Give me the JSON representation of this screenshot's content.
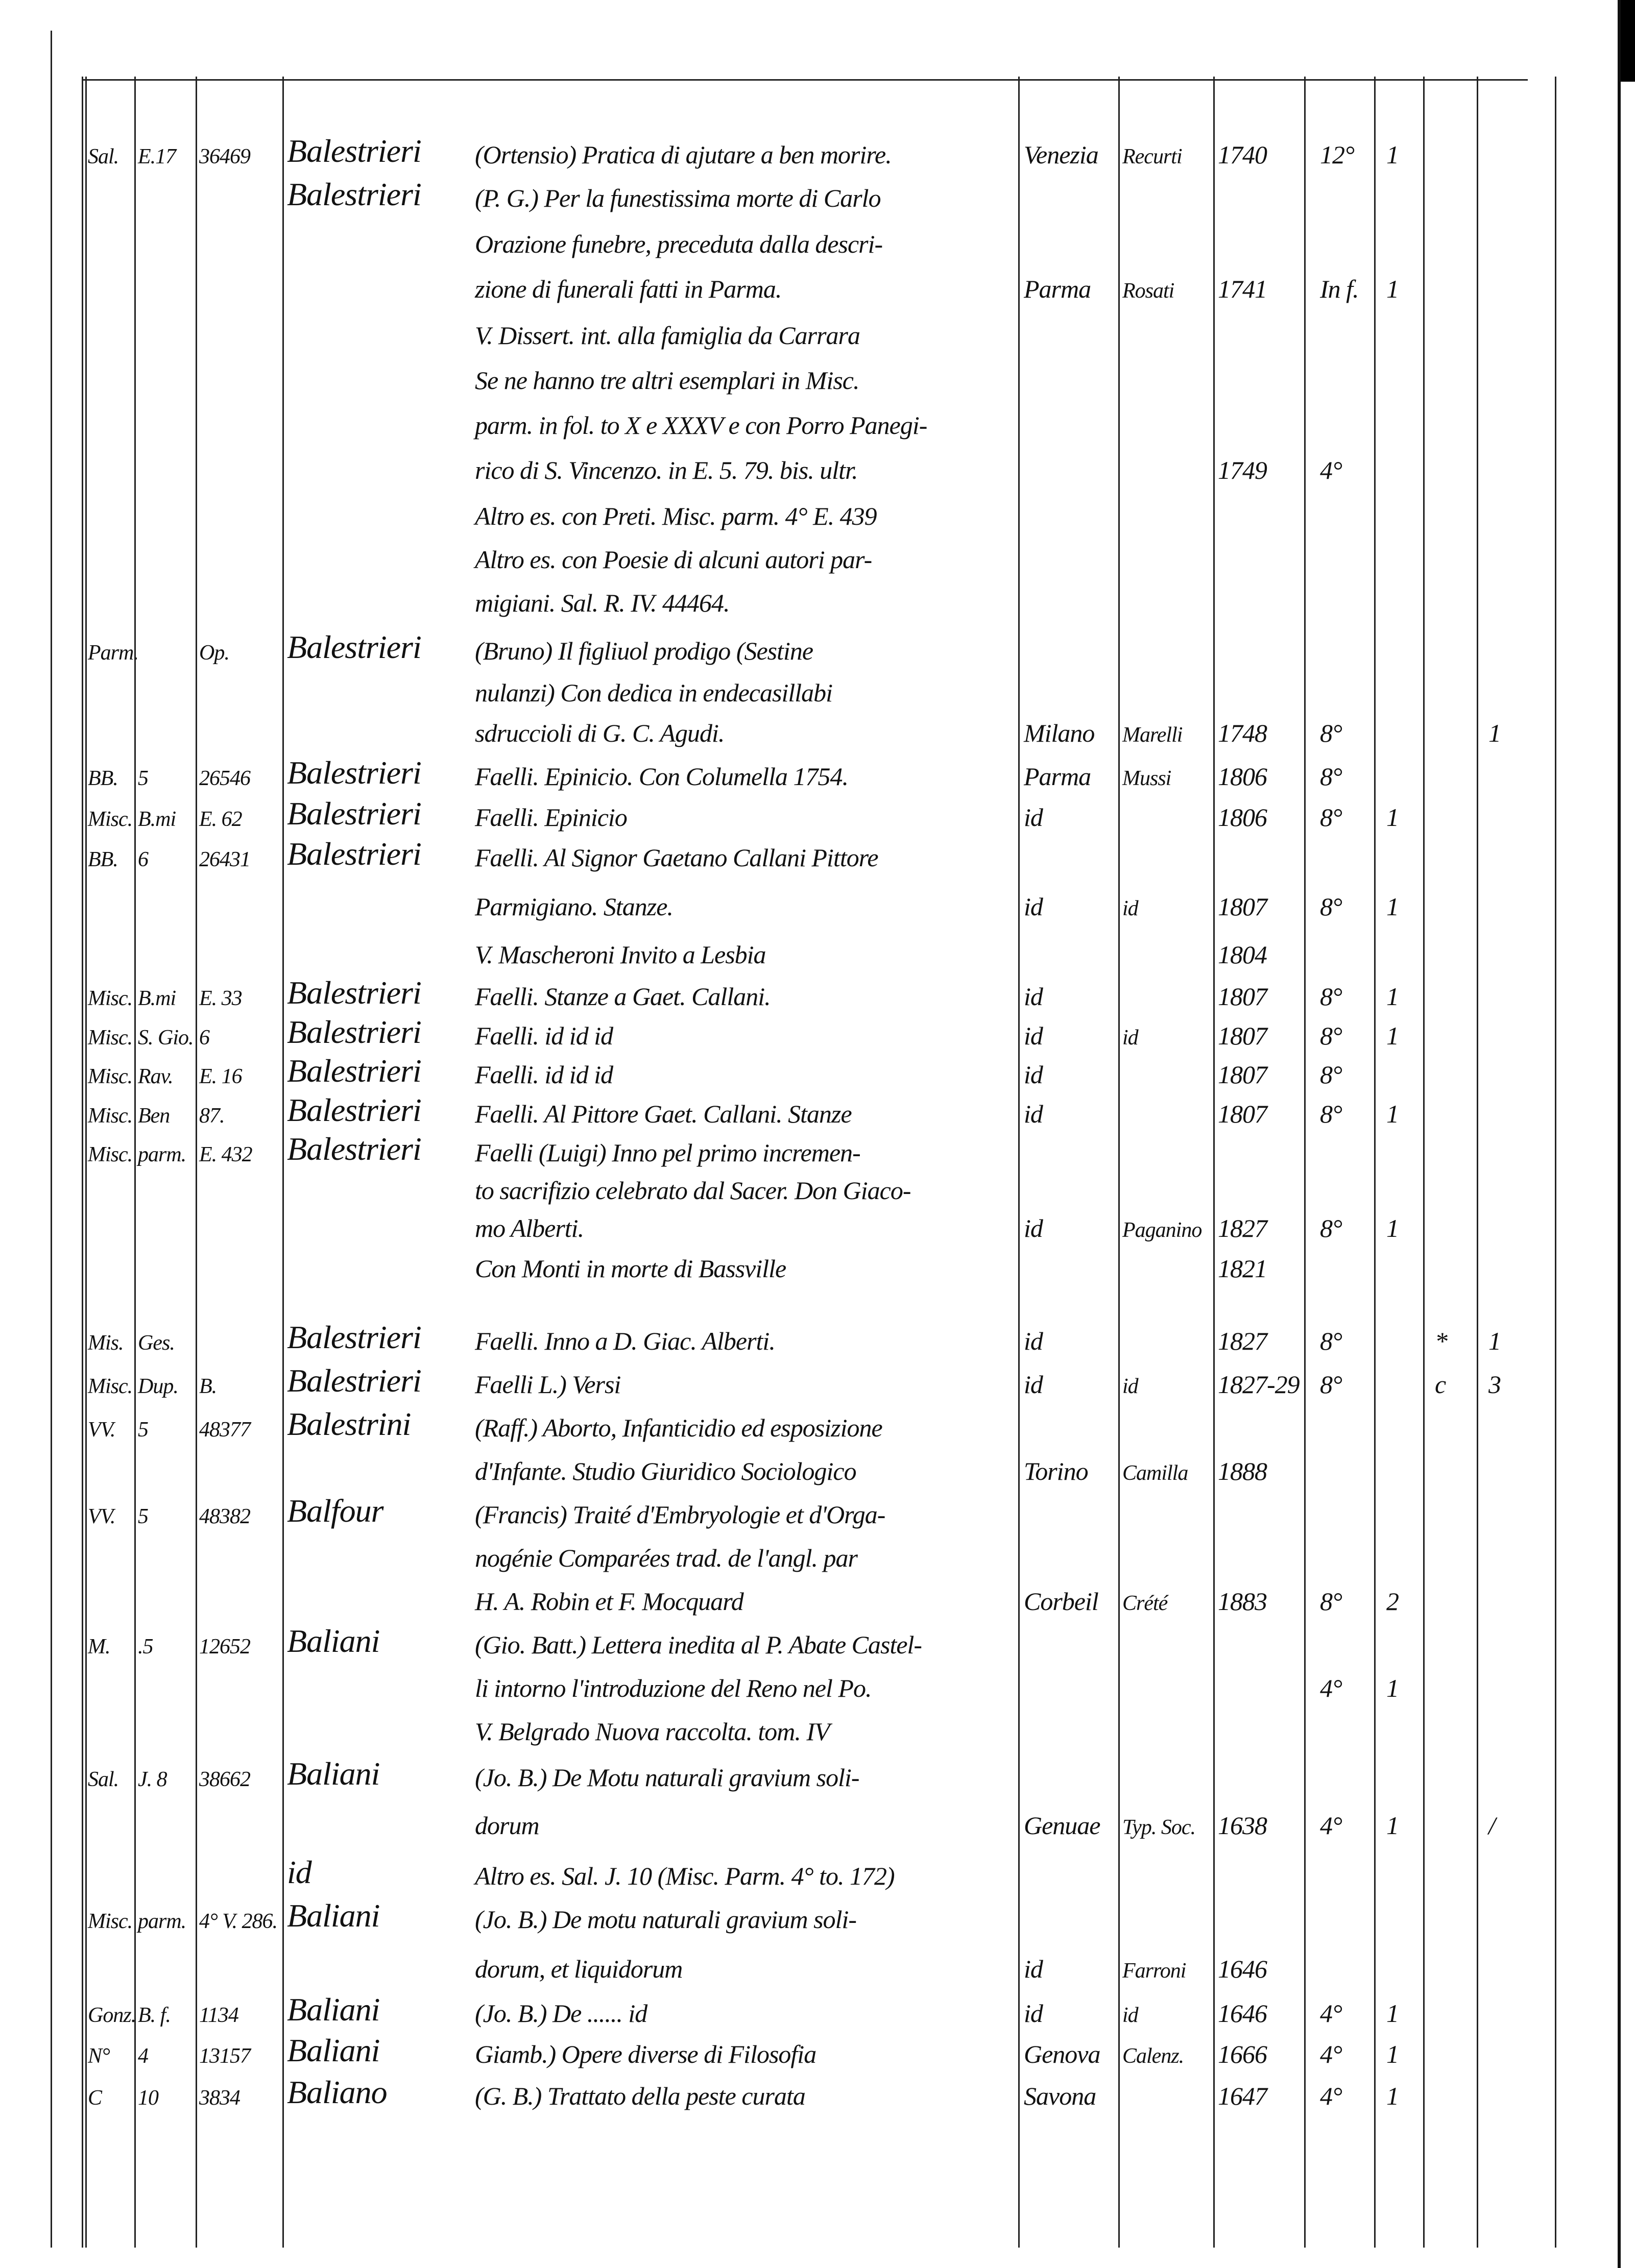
{
  "entries": [
    {
      "shelf": "Sal.",
      "section": "E.17",
      "number": "36469",
      "author": "Balestrieri",
      "title": "(Ortensio) Pratica di ajutare a ben morire.",
      "place": "Venezia",
      "printer": "Recurti",
      "year": "1740",
      "format": "12°",
      "copies": "1"
    },
    {
      "author": "Balestrieri",
      "title": "(P. G.) Per la funestissima morte di Carlo"
    },
    {
      "title": "Orazione funebre, preceduta dalla descri-"
    },
    {
      "title": "zione di funerali fatti in Parma.",
      "place": "Parma",
      "printer": "Rosati",
      "year": "1741",
      "format": "In f.",
      "copies": "1"
    },
    {
      "title": "V. Dissert. int. alla famiglia da Carrara"
    },
    {
      "title": "Se ne hanno tre altri esemplari in Misc."
    },
    {
      "title": "parm. in fol. to X e XXXV e con Porro Panegi-"
    },
    {
      "title": "rico di S. Vincenzo. in E. 5. 79. bis. ultr.",
      "year": "1749",
      "format": "4°"
    },
    {
      "title": "Altro es. con Preti. Misc. parm. 4° E. 439"
    },
    {
      "title": "Altro es. con Poesie di alcuni autori par-"
    },
    {
      "title": "migiani. Sal. R. IV. 44464."
    },
    {
      "shelf": "Parm.",
      "number": "Op.",
      "author": "Balestrieri",
      "title": "(Bruno) Il figliuol prodigo (Sestine"
    },
    {
      "title": "nulanzi) Con dedica in endecasillabi"
    },
    {
      "title": "sdruccioli di G. C. Agudi.",
      "place": "Milano",
      "printer": "Marelli",
      "year": "1748",
      "format": "8°",
      "extra": "1"
    },
    {
      "shelf": "BB.",
      "section": "5",
      "number": "26546",
      "author": "Balestrieri",
      "title": "Faelli. Epinicio. Con Columella 1754.",
      "place": "Parma",
      "printer": "Mussi",
      "year": "1806",
      "format": "8°"
    },
    {
      "shelf": "Misc.",
      "section": "B.mi",
      "number": "E. 62",
      "author": "Balestrieri",
      "title": "Faelli. Epinicio",
      "place": "id",
      "year": "1806",
      "format": "8°",
      "copies": "1"
    },
    {
      "shelf": "BB.",
      "section": "6",
      "number": "26431",
      "author": "Balestrieri",
      "title": "Faelli. Al Signor Gaetano Callani Pittore"
    },
    {
      "title": "Parmigiano. Stanze.",
      "place": "id",
      "printer": "id",
      "year": "1807",
      "format": "8°",
      "copies": "1"
    },
    {
      "title": "V. Mascheroni Invito a Lesbia",
      "year": "1804"
    },
    {
      "shelf": "Misc.",
      "section": "B.mi",
      "number": "E. 33",
      "author": "Balestrieri",
      "title": "Faelli. Stanze a Gaet. Callani.",
      "place": "id",
      "year": "1807",
      "format": "8°",
      "copies": "1"
    },
    {
      "shelf": "Misc.",
      "section": "S. Gio.",
      "number": "6",
      "author": "Balestrieri",
      "title": "Faelli.   id   id   id",
      "place": "id",
      "printer": "id",
      "year": "1807",
      "format": "8°",
      "copies": "1"
    },
    {
      "shelf": "Misc.",
      "section": "Rav.",
      "number": "E. 16",
      "author": "Balestrieri",
      "title": "Faelli.   id   id   id",
      "place": "id",
      "year": "1807",
      "format": "8°"
    },
    {
      "shelf": "Misc.",
      "section": "Ben",
      "number": "87.",
      "author": "Balestrieri",
      "title": "Faelli. Al Pittore Gaet. Callani. Stanze",
      "place": "id",
      "year": "1807",
      "format": "8°",
      "copies": "1"
    },
    {
      "shelf": "Misc.",
      "section": "parm.",
      "number": "E. 432",
      "author": "Balestrieri",
      "title": "Faelli (Luigi) Inno pel primo incremen-"
    },
    {
      "title": "to sacrifizio celebrato dal Sacer. Don Giaco-"
    },
    {
      "title": "mo Alberti.",
      "place": "id",
      "printer": "Paganino",
      "year": "1827",
      "format": "8°",
      "copies": "1"
    },
    {
      "title": "Con Monti in morte di Bassville",
      "year": "1821"
    },
    {
      "shelf": "Mis.",
      "section": "Ges.",
      "author": "Balestrieri",
      "title": "Faelli. Inno a D. Giac. Alberti.",
      "place": "id",
      "year": "1827",
      "format": "8°",
      "mark": "*",
      "extra": "1"
    },
    {
      "shelf": "Misc.",
      "section": "Dup.",
      "number": "B.",
      "author": "Balestrieri",
      "title": "Faelli L.) Versi",
      "place": "id",
      "printer": "id",
      "year": "1827-29",
      "format": "8°",
      "mark": "c",
      "extra": "3"
    },
    {
      "shelf": "VV.",
      "section": "5",
      "number": "48377",
      "author": "Balestrini",
      "title": "(Raff.) Aborto, Infanticidio ed esposizione"
    },
    {
      "title": "d'Infante. Studio Giuridico Sociologico",
      "place": "Torino",
      "printer": "Camilla",
      "year": "1888"
    },
    {
      "shelf": "VV.",
      "section": "5",
      "number": "48382",
      "author": "Balfour",
      "title": "(Francis) Traité d'Embryologie et d'Orga-"
    },
    {
      "title": "nogénie Comparées trad. de l'angl. par"
    },
    {
      "title": "H. A. Robin et F. Mocquard",
      "place": "Corbeil",
      "printer": "Crété",
      "year": "1883",
      "format": "8°",
      "copies": "2"
    },
    {
      "shelf": "M.",
      "section": ".5",
      "number": "12652",
      "author": "Baliani",
      "title": "(Gio. Batt.) Lettera inedita al P. Abate Castel-"
    },
    {
      "title": "li intorno l'introduzione del Reno nel Po.",
      "format": "4°",
      "copies": "1"
    },
    {
      "title": "V. Belgrado Nuova raccolta. tom. IV"
    },
    {
      "shelf": "Sal.",
      "section": "J. 8",
      "number": "38662",
      "author": "Baliani",
      "title": "(Jo. B.) De Motu naturali gravium soli-"
    },
    {
      "title": "dorum",
      "place": "Genuae",
      "printer": "Typ. Soc.",
      "year": "1638",
      "format": "4°",
      "copies": "1",
      "extra": "/"
    },
    {
      "author": "id",
      "title": "Altro es. Sal. J. 10 (Misc. Parm. 4° to. 172)"
    },
    {
      "shelf": "Misc.",
      "section": "parm.",
      "number": "4° V. 286.",
      "author": "Baliani",
      "title": "(Jo. B.) De motu naturali gravium soli-"
    },
    {
      "title": "dorum, et liquidorum",
      "place": "id",
      "printer": "Farroni",
      "year": "1646"
    },
    {
      "shelf": "Gonz.",
      "section": "B. f.",
      "number": "1134",
      "author": "Baliani",
      "title": "(Jo. B.) De ...... id",
      "place": "id",
      "printer": "id",
      "year": "1646",
      "format": "4°",
      "copies": "1"
    },
    {
      "shelf": "N°",
      "section": "4",
      "number": "13157",
      "author": "Baliani",
      "title": "Giamb.) Opere diverse di Filosofia",
      "place": "Genova",
      "printer": "Calenz.",
      "year": "1666",
      "format": "4°",
      "copies": "1"
    },
    {
      "shelf": "C",
      "section": "10",
      "number": "3834",
      "author": "Baliano",
      "title": "(G. B.) Trattato della peste curata",
      "place": "Savona",
      "year": "1647",
      "format": "4°",
      "copies": "1"
    }
  ]
}
